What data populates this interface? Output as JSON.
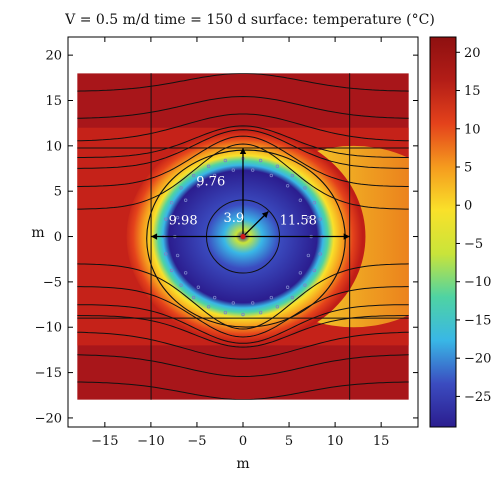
{
  "chart_data": {
    "type": "heatmap",
    "title": "V = 0.5 m/d time = 150 d surface: temperature (°C)",
    "xlabel": "m",
    "ylabel": "m",
    "xlim": [
      -19,
      19
    ],
    "ylim": [
      -21,
      22
    ],
    "plot_extent": {
      "x": [
        -18,
        18
      ],
      "y": [
        -18,
        18
      ]
    },
    "x_ticks": [
      -15,
      -10,
      -5,
      0,
      5,
      10,
      15
    ],
    "y_ticks": [
      -20,
      -15,
      -10,
      -5,
      0,
      5,
      10,
      15,
      20
    ],
    "colorbar": {
      "min": -29,
      "max": 22,
      "ticks": [
        20,
        15,
        10,
        5,
        0,
        -5,
        -10,
        -15,
        -20,
        -25
      ],
      "colors": [
        "#2b1d8f",
        "#3b4cc0",
        "#39b7e6",
        "#4fd3a3",
        "#c9e43a",
        "#f9e12a",
        "#f59b1e",
        "#e4421b",
        "#b31d17",
        "#8e1010"
      ]
    },
    "frozen_body": {
      "center": [
        0,
        0
      ],
      "upstream_extent": 9.98,
      "downstream_extent": 11.58,
      "vertical_extent": 9.76,
      "inner_radius": 3.9
    },
    "annotations": [
      {
        "text": "9.76",
        "x": -3.5,
        "y": 5.6
      },
      {
        "text": "9.98",
        "x": -6.5,
        "y": 1.3
      },
      {
        "text": "11.58",
        "x": 6.0,
        "y": 1.3
      },
      {
        "text": "3.9",
        "x": -1.0,
        "y": 1.6
      }
    ],
    "vertical_reference_lines_x": [
      -9.98,
      11.58
    ],
    "horizontal_reference_lines_y": [
      9.76,
      -9.0
    ],
    "streamline_offsets": [
      -16,
      -13,
      -10.5,
      -8.7,
      -7.5,
      -5.5,
      -3,
      3,
      5.5,
      7.5,
      8.7,
      10.5,
      13,
      16
    ],
    "freeze_pipes_outer_radius": 8.6,
    "freeze_pipes_outer_count": 28,
    "freeze_pipes_inner_radius": 7.4,
    "freeze_pipes_inner_count": 22
  }
}
